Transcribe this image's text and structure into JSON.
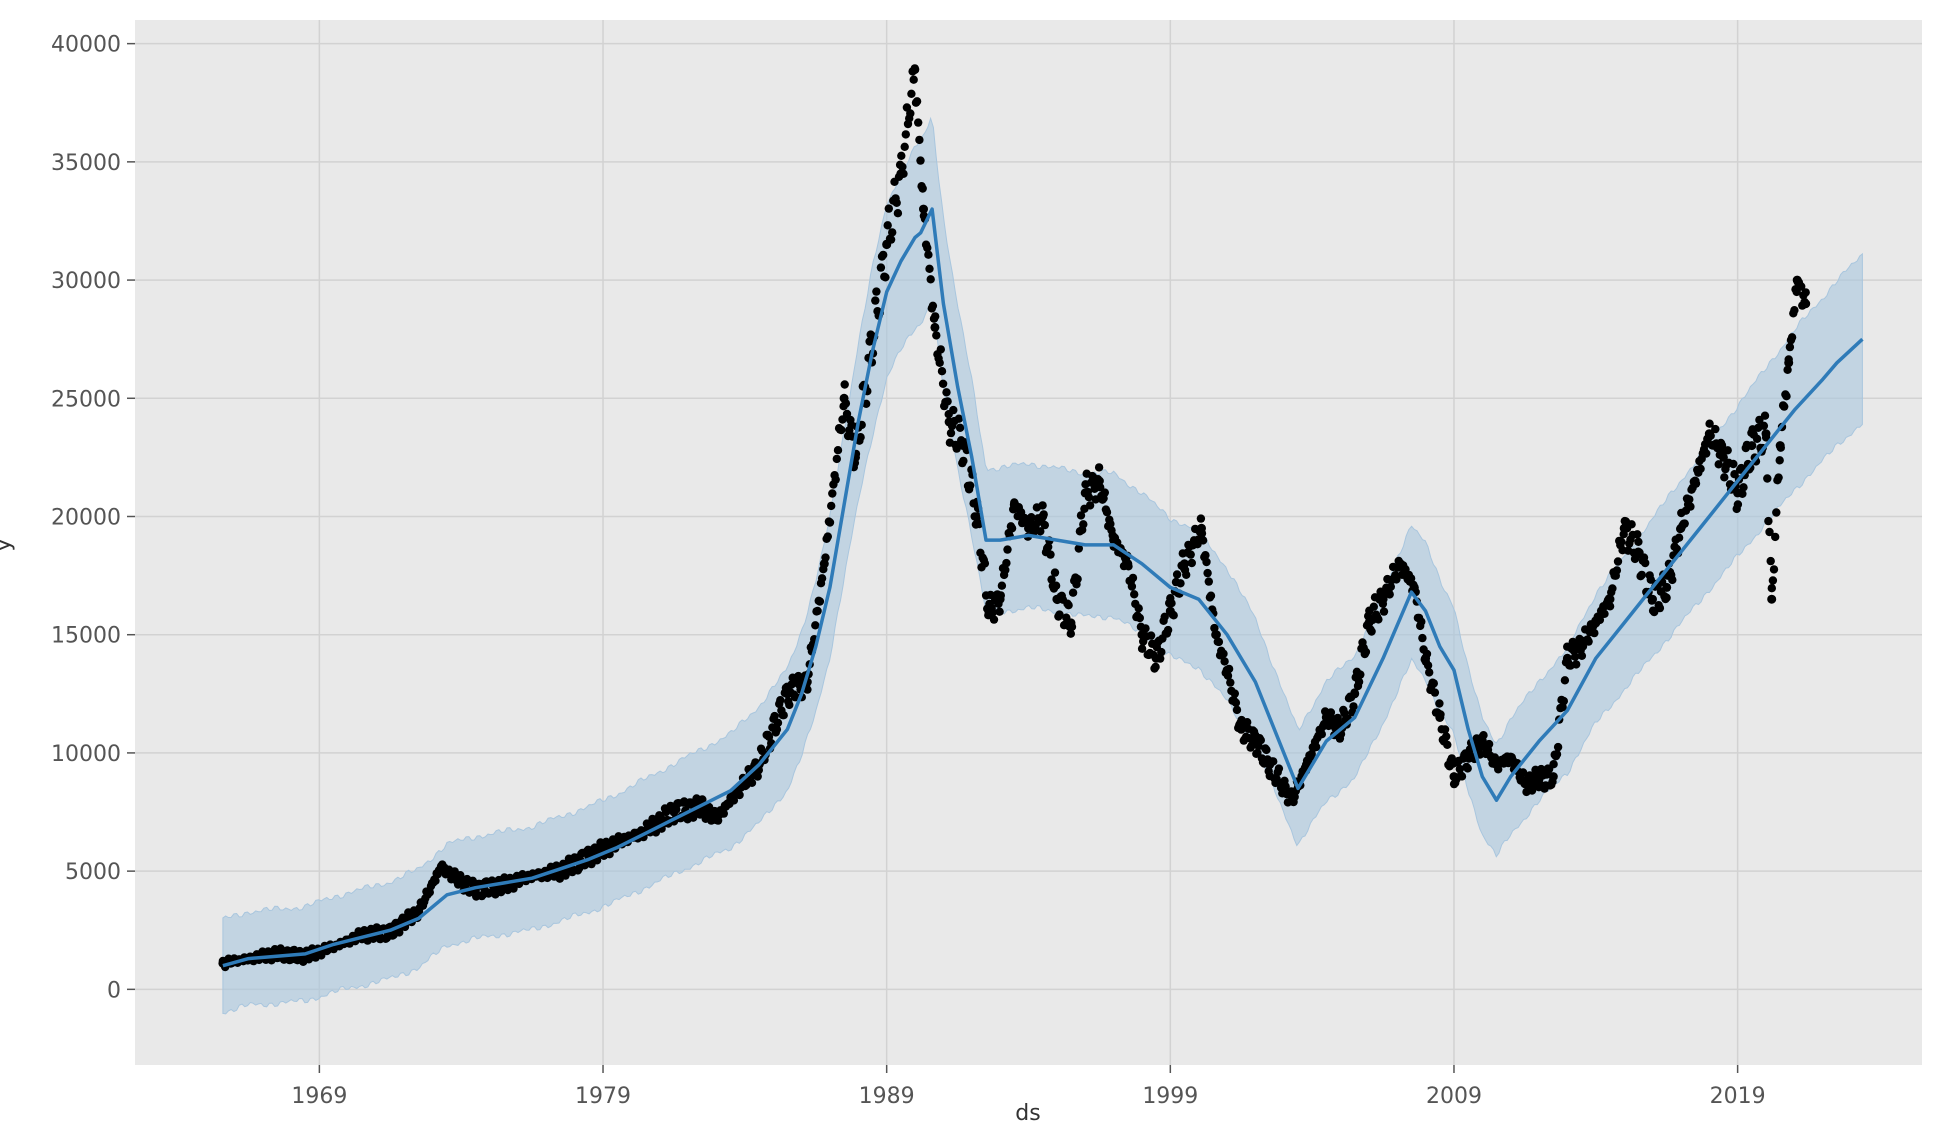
{
  "chart_data": {
    "type": "line",
    "title": "",
    "xlabel": "ds",
    "ylabel": "y",
    "grid": true,
    "legend": "none",
    "xlim": [
      1962.5,
      2025.5
    ],
    "ylim": [
      -3200,
      41000
    ],
    "x_ticks": [
      1969,
      1979,
      1989,
      1999,
      2009,
      2019
    ],
    "x_tick_labels": [
      "1969",
      "1979",
      "1989",
      "1999",
      "2009",
      "2019"
    ],
    "y_ticks": [
      0,
      5000,
      10000,
      15000,
      20000,
      25000,
      30000,
      35000,
      40000
    ],
    "y_tick_labels": [
      "0",
      "5000",
      "10000",
      "15000",
      "20000",
      "25000",
      "30000",
      "35000",
      "40000"
    ],
    "colors": {
      "plot_background": "#e9e9e9",
      "grid": "#d2d2d2",
      "observed": "#000000",
      "forecast": "#2f7bb8",
      "interval": "#a9c6de"
    },
    "series": [
      {
        "kind": "observed",
        "x": [
          1965.6,
          1966.5,
          1967.5,
          1968.5,
          1969.5,
          1970.5,
          1971.5,
          1972.5,
          1973.3,
          1973.8,
          1974.5,
          1975.5,
          1976.5,
          1977.5,
          1978.5,
          1979.5,
          1980.5,
          1981.5,
          1982.5,
          1983.0,
          1983.5,
          1984.5,
          1985.5,
          1986.2,
          1986.8,
          1987.5,
          1987.9,
          1988.5,
          1989.0,
          1989.5,
          1989.99,
          1990.3,
          1990.7,
          1991.2,
          1991.7,
          1992.2,
          1992.6,
          1993.0,
          1993.5,
          1994.0,
          1994.5,
          1995.0,
          1995.5,
          1996.0,
          1996.5,
          1997.0,
          1997.5,
          1998.0,
          1998.5,
          1999.0,
          1999.5,
          2000.1,
          2000.6,
          2001.0,
          2001.5,
          2002.0,
          2002.5,
          2003.3,
          2003.8,
          2004.5,
          2005.0,
          2005.5,
          2006.0,
          2006.5,
          2007.1,
          2007.6,
          2008.0,
          2008.5,
          2009.0,
          2009.5,
          2010.0,
          2010.5,
          2011.0,
          2011.5,
          2012.0,
          2012.5,
          2013.0,
          2013.5,
          2014.0,
          2014.5,
          2015.0,
          2015.5,
          2016.0,
          2016.5,
          2017.0,
          2017.5,
          2018.0,
          2018.5,
          2019.0,
          2019.5,
          2020.0,
          2020.2,
          2020.5,
          2020.8,
          2021.1,
          2021.4
        ],
        "y": [
          1100,
          1300,
          1500,
          1400,
          1800,
          2300,
          2400,
          3300,
          5200,
          4700,
          4200,
          4400,
          4800,
          5000,
          5600,
          6200,
          6700,
          7500,
          7700,
          7200,
          8000,
          9500,
          12500,
          13000,
          18000,
          25000,
          22500,
          27500,
          31500,
          34500,
          38900,
          33000,
          28000,
          24000,
          23000,
          20000,
          16000,
          16500,
          20500,
          19500,
          20000,
          16500,
          15500,
          21000,
          21500,
          19000,
          18000,
          15000,
          14000,
          16000,
          18000,
          19500,
          15000,
          13500,
          11000,
          10500,
          9500,
          8000,
          9500,
          11500,
          11000,
          12500,
          15500,
          16500,
          18000,
          17000,
          14000,
          11500,
          9000,
          9800,
          10500,
          9500,
          9800,
          8700,
          8900,
          9000,
          14000,
          14500,
          15500,
          16500,
          19500,
          18500,
          16500,
          17000,
          19500,
          21500,
          23500,
          22500,
          21000,
          23000,
          23500,
          16500,
          23000,
          26500,
          30000,
          29000
        ]
      },
      {
        "kind": "forecast",
        "x": [
          1965.6,
          1966.5,
          1967.5,
          1968.5,
          1969.5,
          1970.5,
          1971.5,
          1972.5,
          1973.5,
          1974.5,
          1975.5,
          1976.5,
          1977.5,
          1978.5,
          1979.5,
          1980.5,
          1981.5,
          1982.5,
          1983.5,
          1984.5,
          1985.5,
          1986.0,
          1986.5,
          1987.0,
          1987.5,
          1988.0,
          1988.5,
          1989.0,
          1989.5,
          1990.0,
          1990.2,
          1990.6,
          1991.0,
          1991.5,
          1992.0,
          1992.5,
          1993.0,
          1994.0,
          1995.0,
          1996.0,
          1997.0,
          1998.0,
          1999.0,
          2000.0,
          2001.0,
          2002.0,
          2003.5,
          2004.5,
          2005.5,
          2006.5,
          2007.5,
          2008.0,
          2008.5,
          2009.0,
          2009.5,
          2010.0,
          2010.5,
          2011.0,
          2012.0,
          2013.0,
          2014.0,
          2015.0,
          2016.0,
          2017.0,
          2018.0,
          2019.0,
          2020.0,
          2021.0,
          2022.0,
          2022.5,
          2023.4
        ],
        "y": [
          1000,
          1300,
          1400,
          1500,
          1900,
          2200,
          2500,
          3000,
          4000,
          4300,
          4500,
          4700,
          5100,
          5500,
          6000,
          6600,
          7200,
          7800,
          8400,
          9500,
          11000,
          12500,
          14500,
          17000,
          20500,
          24000,
          27000,
          29500,
          30800,
          31800,
          32000,
          33000,
          29000,
          25500,
          22500,
          19000,
          19000,
          19200,
          19000,
          18800,
          18800,
          18000,
          17000,
          16500,
          15000,
          13000,
          8500,
          10500,
          11500,
          14000,
          16800,
          16000,
          14500,
          13500,
          11000,
          9000,
          8000,
          9000,
          10500,
          11800,
          14000,
          15500,
          17000,
          18500,
          20000,
          21500,
          23000,
          24500,
          25800,
          26500,
          27500
        ]
      }
    ]
  }
}
